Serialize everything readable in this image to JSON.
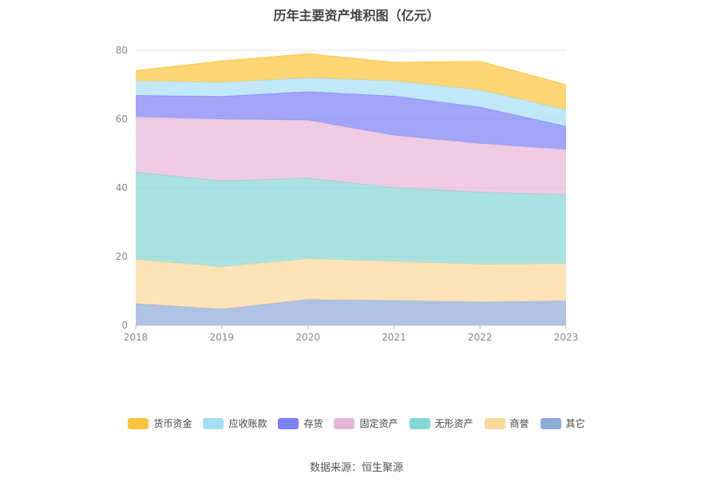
{
  "title": "历年主要资产堆积图（亿元）",
  "source_note": "数据来源：恒生聚源",
  "chart_data": {
    "type": "area",
    "stacked": true,
    "title": "历年主要资产堆积图（亿元）",
    "categories": [
      "2018",
      "2019",
      "2020",
      "2021",
      "2022",
      "2023"
    ],
    "ylim": [
      0,
      80
    ],
    "yticks": [
      "0",
      "20",
      "40",
      "60",
      "80"
    ],
    "grid": true,
    "legend_position": "bottom",
    "series": [
      {
        "name": "其它",
        "color": "#8eaad8",
        "values": [
          6.3,
          4.7,
          7.5,
          7.2,
          6.8,
          7.1
        ]
      },
      {
        "name": "商誉",
        "color": "#fcd99a",
        "values": [
          12.9,
          12.3,
          11.9,
          11.4,
          11.0,
          10.8
        ]
      },
      {
        "name": "无形资产",
        "color": "#86d6d6",
        "values": [
          25.3,
          25.0,
          23.4,
          21.5,
          20.9,
          20.1
        ]
      },
      {
        "name": "固定资产",
        "color": "#e6b6d8",
        "values": [
          16.2,
          18.0,
          16.9,
          15.2,
          14.2,
          13.2
        ]
      },
      {
        "name": "存货",
        "color": "#7b7ff5",
        "values": [
          6.2,
          6.6,
          8.3,
          11.4,
          10.6,
          6.7
        ]
      },
      {
        "name": "应收账款",
        "color": "#a6def6",
        "values": [
          4.2,
          4.1,
          4.0,
          4.4,
          5.0,
          4.8
        ]
      },
      {
        "name": "货币资金",
        "color": "#fcc43c",
        "values": [
          3.0,
          6.2,
          7.0,
          5.4,
          8.3,
          7.3
        ]
      }
    ]
  },
  "legend_order": [
    "货币资金",
    "应收账款",
    "存货",
    "固定资产",
    "无形资产",
    "商誉",
    "其它"
  ]
}
